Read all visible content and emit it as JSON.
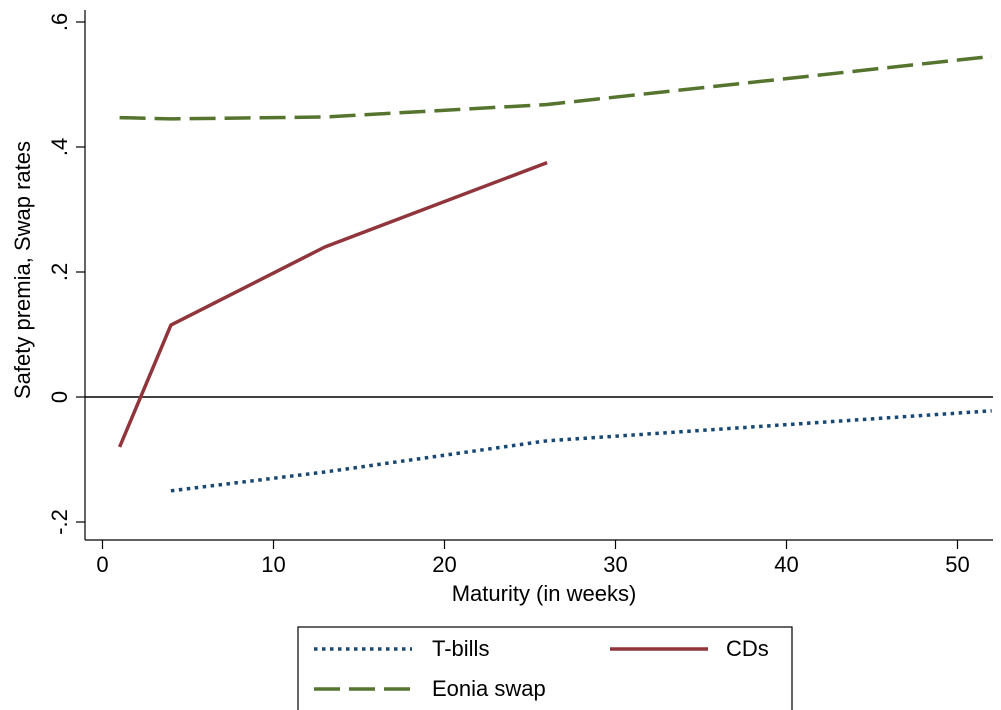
{
  "chart_data": {
    "type": "line",
    "title": "",
    "xlabel": "Maturity (in weeks)",
    "ylabel": "Safety premia, Swap rates",
    "xlim": [
      0,
      52
    ],
    "ylim": [
      -0.2,
      0.6
    ],
    "x_ticks": [
      0,
      10,
      20,
      30,
      40,
      50
    ],
    "x_tick_labels": [
      "0",
      "10",
      "20",
      "30",
      "40",
      "50"
    ],
    "y_ticks": [
      -0.2,
      0,
      0.2,
      0.4,
      0.6
    ],
    "y_tick_labels": [
      "-.2",
      "0",
      ".2",
      ".4",
      ".6"
    ],
    "reference_line": 0,
    "grid": false,
    "legend_position": "bottom",
    "series": [
      {
        "name": "T-bills",
        "color": "#1a476f",
        "style": "dotted",
        "points": [
          [
            4,
            -0.15
          ],
          [
            13,
            -0.12
          ],
          [
            26,
            -0.07
          ],
          [
            52,
            -0.022
          ]
        ]
      },
      {
        "name": "CDs",
        "color": "#90353b",
        "style": "solid",
        "points": [
          [
            1,
            -0.08
          ],
          [
            4,
            0.115
          ],
          [
            13,
            0.24
          ],
          [
            26,
            0.375
          ]
        ]
      },
      {
        "name": "Eonia swap",
        "color": "#55752f",
        "style": "dashed",
        "points": [
          [
            1,
            0.447
          ],
          [
            4,
            0.445
          ],
          [
            13,
            0.448
          ],
          [
            26,
            0.468
          ],
          [
            52,
            0.545
          ]
        ]
      }
    ]
  }
}
